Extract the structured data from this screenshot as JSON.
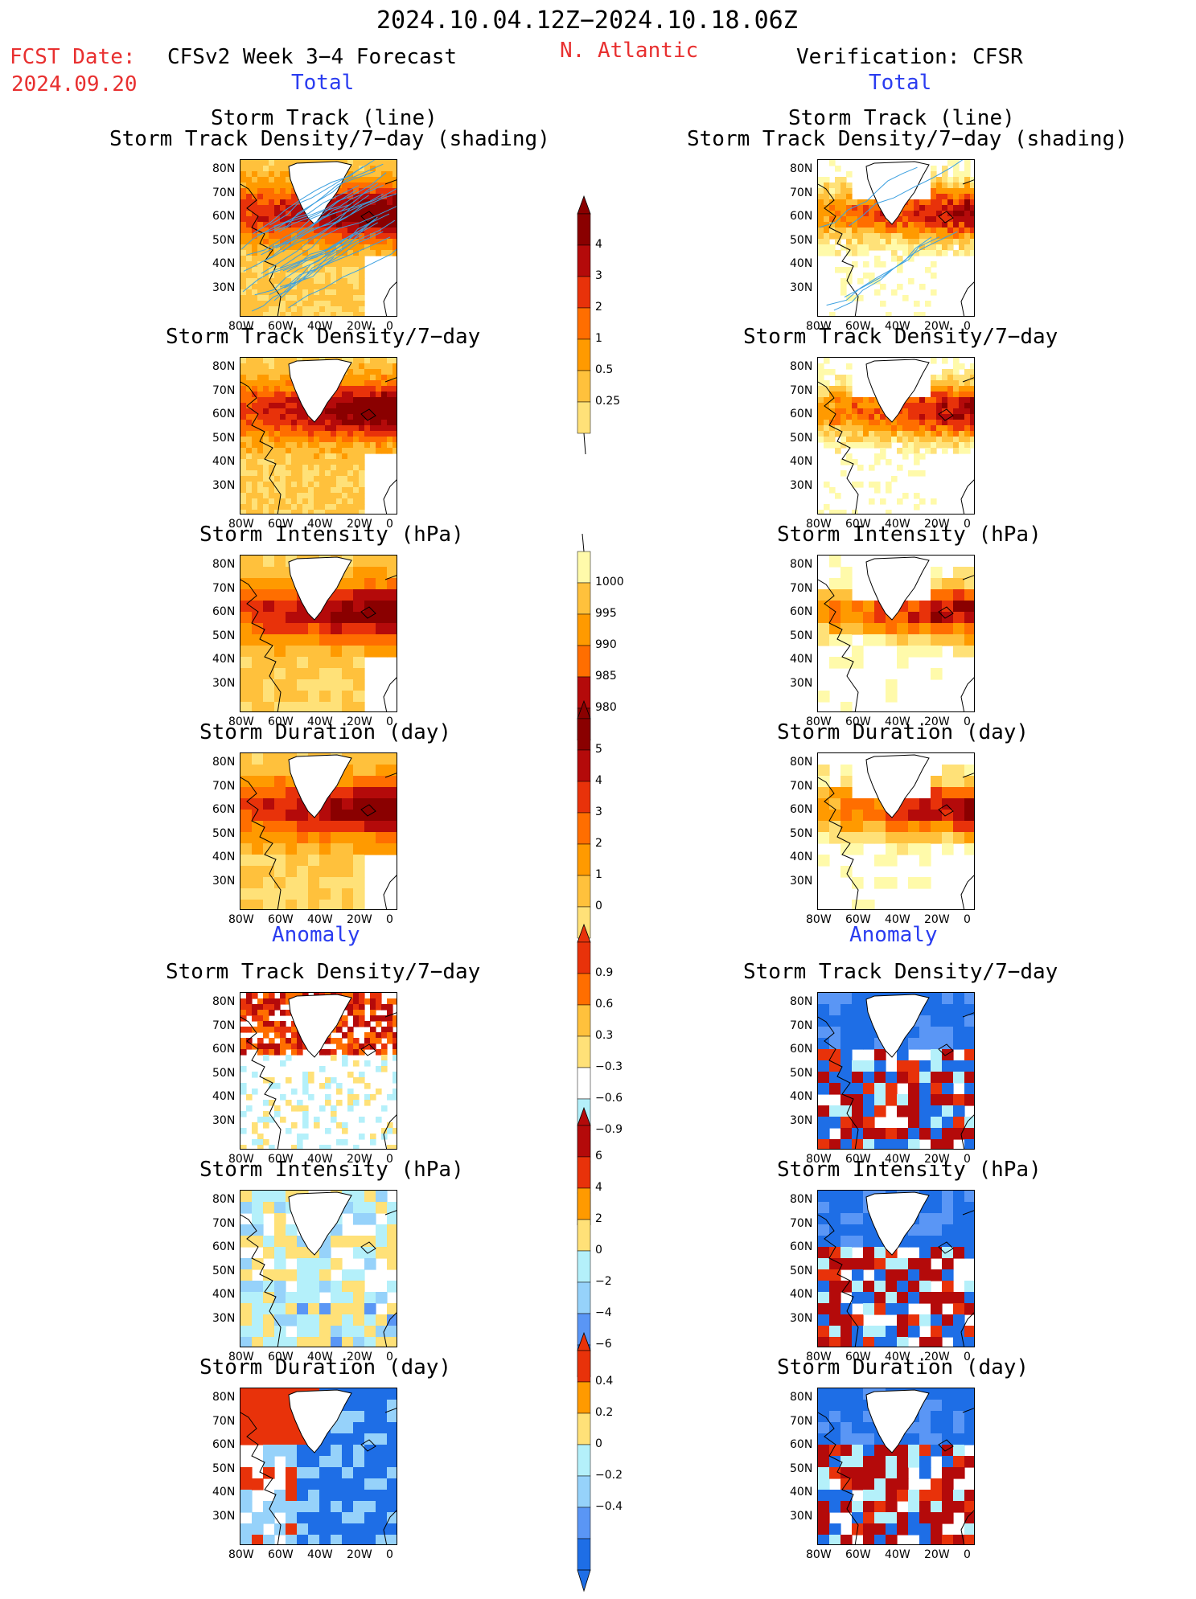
{
  "header": {
    "date_range": "2024.10.04.12Z−2024.10.18.06Z",
    "fcst_label": "FCST Date:",
    "fcst_date": "2024.09.20",
    "left_title": "CFSv2 Week 3−4 Forecast",
    "region": "N. Atlantic",
    "right_title": "Verification: CFSR",
    "total_label": "Total",
    "anomaly_label": "Anomaly"
  },
  "panel_titles": {
    "track_line": "Storm Track (line)",
    "track_shading": "Storm Track Density/7−day (shading)",
    "density": "Storm Track Density/7−day",
    "intensity": "Storm Intensity (hPa)",
    "duration": "Storm Duration (day)"
  },
  "axes": {
    "y_ticks": [
      "80N",
      "70N",
      "60N",
      "50N",
      "40N",
      "30N"
    ],
    "x_ticks": [
      "80W",
      "60W",
      "40W",
      "20W",
      "0"
    ]
  },
  "colorbars": {
    "density_total": [
      "4",
      "3",
      "2",
      "1",
      "0.5",
      "0.25"
    ],
    "intensity_total": [
      "1000",
      "995",
      "990",
      "985",
      "980"
    ],
    "duration_total": [
      "5",
      "4",
      "3",
      "2",
      "1",
      "0"
    ],
    "density_anom": [
      "0.9",
      "0.6",
      "0.3",
      "−0.3",
      "−0.6",
      "−0.9"
    ],
    "intensity_anom": [
      "6",
      "4",
      "2",
      "0",
      "−2",
      "−4",
      "−6"
    ],
    "duration_anom": [
      "0.4",
      "0.2",
      "0",
      "−0.2",
      "−0.4"
    ]
  },
  "colors": {
    "warm": [
      "#fffaaa",
      "#ffe178",
      "#ffc13c",
      "#ff9a00",
      "#ff6e00",
      "#e8320a",
      "#b40a0a",
      "#8a0000"
    ],
    "cool": [
      "#b4f0fa",
      "#96d2fa",
      "#5a96f5",
      "#1e6ee6"
    ],
    "track_line": "#3ca0e0"
  }
}
